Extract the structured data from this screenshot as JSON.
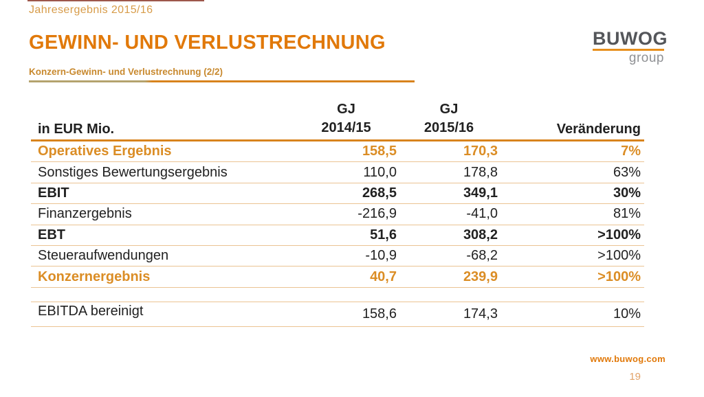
{
  "header": {
    "eyebrow": "Jahresergebnis 2015/16",
    "title": "GEWINN- UND VERLUSTRECHNUNG",
    "subtitle": "Konzern-Gewinn- und Verlustrechnung (2/2)"
  },
  "logo": {
    "wordmark": "BUWOG",
    "suffix": "group"
  },
  "table": {
    "headers": {
      "label": "in EUR Mio.",
      "gj1": [
        "GJ",
        "2014/15"
      ],
      "gj2": [
        "GJ",
        "2015/16"
      ],
      "change": "Veränderung"
    },
    "rows": [
      {
        "label": "Operatives Ergebnis",
        "gj1415": "158,5",
        "gj1516": "170,3",
        "change": "7%",
        "emphasis": "orange"
      },
      {
        "label": "Sonstiges Bewertungsergebnis",
        "gj1415": "110,0",
        "gj1516": "178,8",
        "change": "63%",
        "emphasis": "normal"
      },
      {
        "label": "EBIT",
        "gj1415": "268,5",
        "gj1516": "349,1",
        "change": "30%",
        "emphasis": "bold"
      },
      {
        "label": "Finanzergebnis",
        "gj1415": "-216,9",
        "gj1516": "-41,0",
        "change": "81%",
        "emphasis": "normal"
      },
      {
        "label": "EBT",
        "gj1415": "51,6",
        "gj1516": "308,2",
        "change": ">100%",
        "emphasis": "bold"
      },
      {
        "label": "Steueraufwendungen",
        "gj1415": "-10,9",
        "gj1516": "-68,2",
        "change": ">100%",
        "emphasis": "normal"
      },
      {
        "label": "Konzernergebnis",
        "gj1415": "40,7",
        "gj1516": "239,9",
        "change": ">100%",
        "emphasis": "orange"
      }
    ],
    "ebitda_row": {
      "label": "EBITDA bereinigt",
      "gj1415": "158,6",
      "gj1516": "174,3",
      "change": "10%",
      "emphasis": "normal"
    }
  },
  "footer": {
    "url": "www.buwog.com",
    "page": "19"
  },
  "colors": {
    "accent": "#E1790A",
    "eyebrow": "#D79B48",
    "subtitleText": "#C8892E",
    "ruleLeft": "#B4A36E",
    "ruleThick": "#D8831C",
    "ruleThin": "#EBC392",
    "tableOrange": "#DB8D25",
    "ink": "#212121",
    "logoDark": "#54565A",
    "logoGray": "#8F9194",
    "logoRule": "#E78E1B",
    "pageNum": "#E2A369",
    "topRule": "#8C3A2B"
  }
}
